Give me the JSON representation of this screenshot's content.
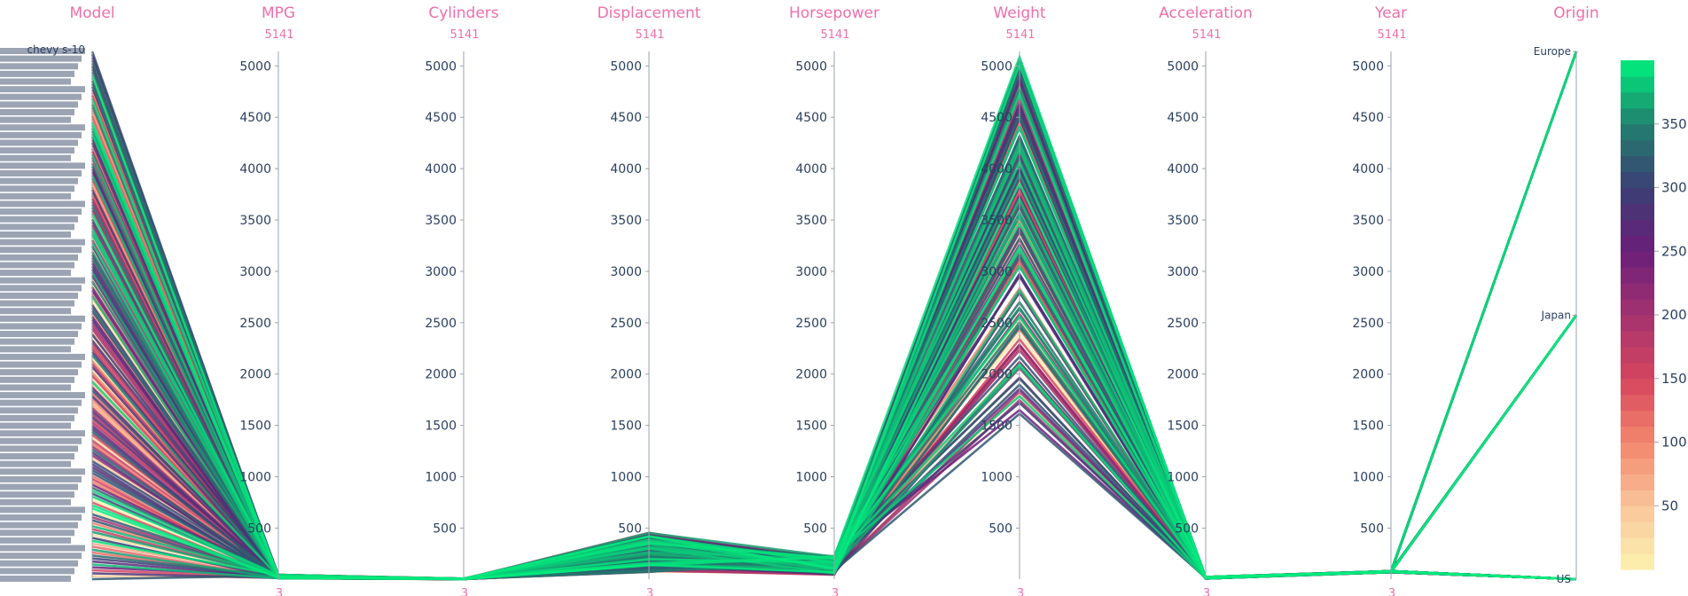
{
  "chart_data": {
    "type": "parallel_coordinates",
    "dimensions": [
      {
        "name": "Model",
        "range": [
          3,
          5141
        ],
        "categorical": true,
        "visible_category_label": "chevy s-10",
        "ticks": [],
        "range_label": ""
      },
      {
        "name": "MPG",
        "range": [
          3,
          5141
        ],
        "ticks": [
          500,
          1000,
          1500,
          2000,
          2500,
          3000,
          3500,
          4000,
          4500,
          5000
        ],
        "range_max_label": "5141",
        "range_min_label": "3"
      },
      {
        "name": "Cylinders",
        "range": [
          3,
          5141
        ],
        "ticks": [
          500,
          1000,
          1500,
          2000,
          2500,
          3000,
          3500,
          4000,
          4500,
          5000
        ],
        "range_max_label": "5141",
        "range_min_label": "3"
      },
      {
        "name": "Displacement",
        "range": [
          3,
          5141
        ],
        "ticks": [
          500,
          1000,
          1500,
          2000,
          2500,
          3000,
          3500,
          4000,
          4500,
          5000
        ],
        "range_max_label": "5141",
        "range_min_label": "3"
      },
      {
        "name": "Horsepower",
        "range": [
          3,
          5141
        ],
        "ticks": [
          500,
          1000,
          1500,
          2000,
          2500,
          3000,
          3500,
          4000,
          4500,
          5000
        ],
        "range_max_label": "5141",
        "range_min_label": "3"
      },
      {
        "name": "Weight",
        "range": [
          3,
          5141
        ],
        "ticks": [
          500,
          1000,
          1500,
          2000,
          2500,
          3000,
          3500,
          4000,
          4500,
          5000
        ],
        "range_max_label": "5141",
        "range_min_label": "3"
      },
      {
        "name": "Acceleration",
        "range": [
          3,
          5141
        ],
        "ticks": [
          500,
          1000,
          1500,
          2000,
          2500,
          3000,
          3500,
          4000,
          4500,
          5000
        ],
        "range_max_label": "5141",
        "range_min_label": "3"
      },
      {
        "name": "Year",
        "range": [
          3,
          5141
        ],
        "ticks": [
          500,
          1000,
          1500,
          2000,
          2500,
          3000,
          3500,
          4000,
          4500,
          5000
        ],
        "range_max_label": "5141",
        "range_min_label": "3"
      },
      {
        "name": "Origin",
        "range": [
          3,
          5141
        ],
        "categorical": true,
        "categories": [
          {
            "label": "Europe",
            "value": 5141
          },
          {
            "label": "Japan",
            "value": 2572
          },
          {
            "label": "US",
            "value": 3
          }
        ]
      }
    ],
    "colorbar": {
      "range": [
        0,
        400
      ],
      "ticks": [
        50,
        100,
        150,
        200,
        250,
        300,
        350
      ],
      "colorscale": [
        "#fcf3b0",
        "#f9c59a",
        "#f3866d",
        "#d6455e",
        "#a4336f",
        "#6b1e7a",
        "#3b3f74",
        "#21806e",
        "#00f07d"
      ]
    },
    "approx_values": {
      "MPG": [
        10,
        46
      ],
      "Cylinders": [
        3,
        8
      ],
      "Displacement": [
        68,
        455
      ],
      "Horsepower": [
        46,
        230
      ],
      "Weight": [
        1613,
        5140
      ],
      "Acceleration": [
        8,
        25
      ],
      "Year": [
        70,
        82
      ],
      "Origin": [
        "US",
        "Japan",
        "Europe"
      ]
    }
  }
}
